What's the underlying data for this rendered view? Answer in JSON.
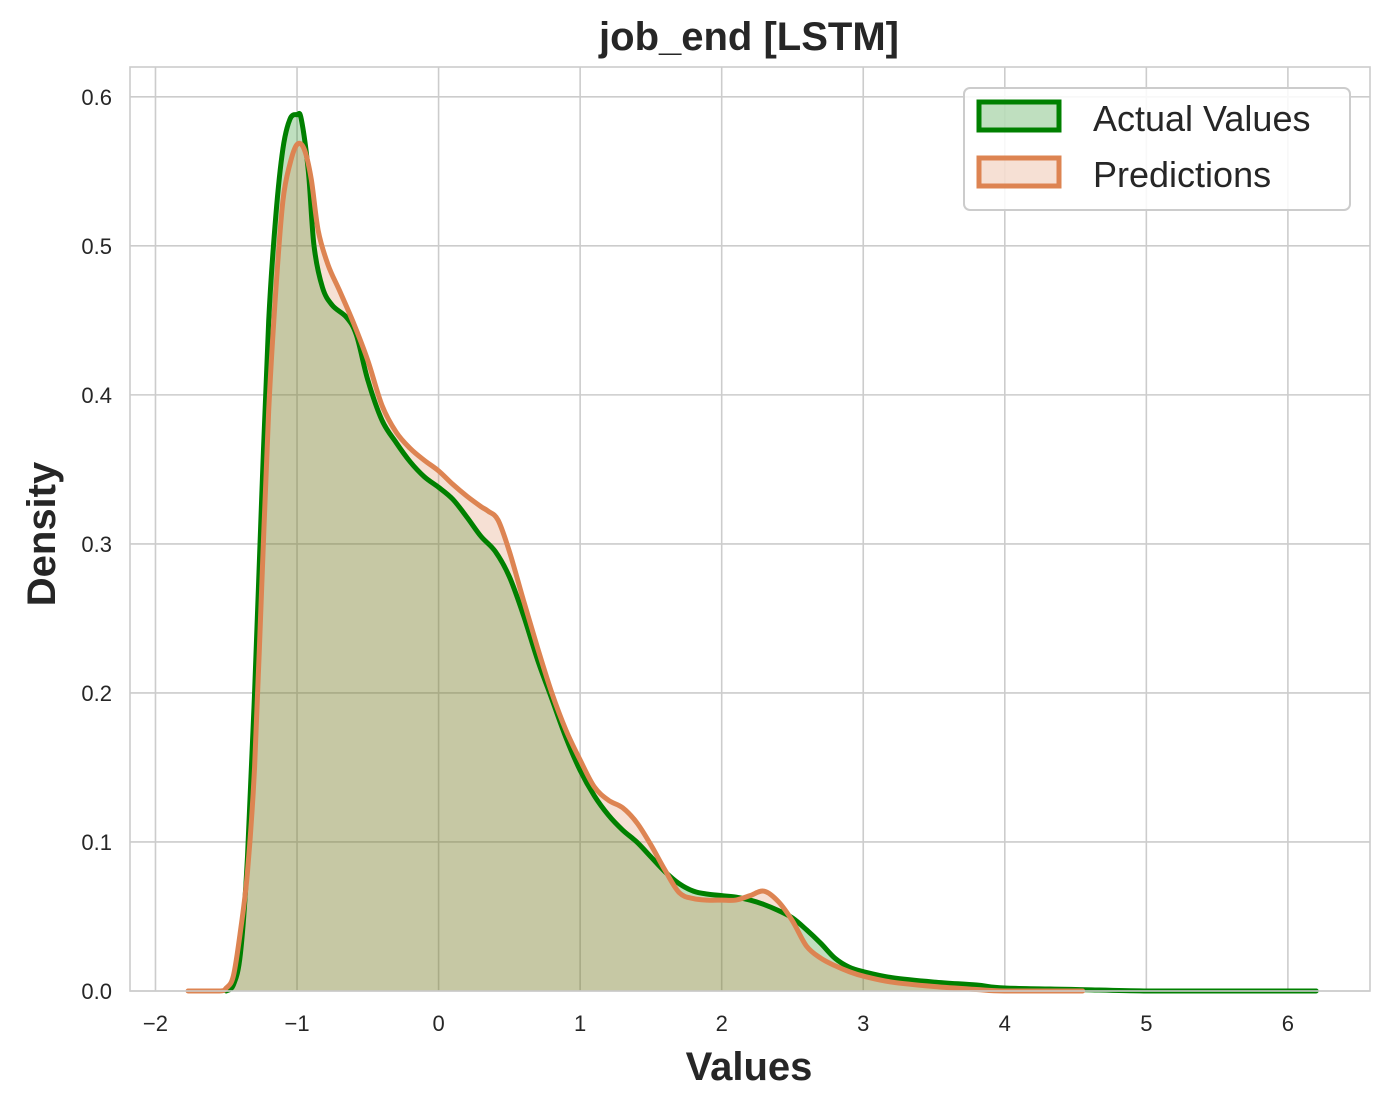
{
  "chart_data": {
    "type": "area",
    "title": "job_end [LSTM]",
    "xlabel": "Values",
    "ylabel": "Density",
    "xlim": [
      -2.18,
      6.58
    ],
    "ylim": [
      0.0,
      0.62
    ],
    "x_ticks": [
      -2,
      -1,
      0,
      1,
      2,
      3,
      4,
      5,
      6
    ],
    "x_tick_labels": [
      "−2",
      "−1",
      "0",
      "1",
      "2",
      "3",
      "4",
      "5",
      "6"
    ],
    "y_ticks": [
      0.0,
      0.1,
      0.2,
      0.3,
      0.4,
      0.5,
      0.6
    ],
    "y_tick_labels": [
      "0.0",
      "0.1",
      "0.2",
      "0.3",
      "0.4",
      "0.5",
      "0.6"
    ],
    "grid": true,
    "legend_position": "top-right",
    "series": [
      {
        "name": "Actual Values",
        "color": "#008000",
        "fill_color": "#008000",
        "fill_opacity": 0.25,
        "points": [
          [
            -1.5,
            0.0
          ],
          [
            -1.45,
            0.004
          ],
          [
            -1.4,
            0.025
          ],
          [
            -1.35,
            0.09
          ],
          [
            -1.3,
            0.2
          ],
          [
            -1.25,
            0.33
          ],
          [
            -1.2,
            0.45
          ],
          [
            -1.15,
            0.52
          ],
          [
            -1.1,
            0.565
          ],
          [
            -1.05,
            0.585
          ],
          [
            -1.0,
            0.588
          ],
          [
            -0.97,
            0.585
          ],
          [
            -0.92,
            0.55
          ],
          [
            -0.88,
            0.5
          ],
          [
            -0.82,
            0.472
          ],
          [
            -0.75,
            0.46
          ],
          [
            -0.65,
            0.452
          ],
          [
            -0.58,
            0.44
          ],
          [
            -0.5,
            0.41
          ],
          [
            -0.4,
            0.383
          ],
          [
            -0.3,
            0.368
          ],
          [
            -0.2,
            0.355
          ],
          [
            -0.1,
            0.345
          ],
          [
            0.0,
            0.338
          ],
          [
            0.1,
            0.33
          ],
          [
            0.2,
            0.318
          ],
          [
            0.3,
            0.305
          ],
          [
            0.4,
            0.295
          ],
          [
            0.5,
            0.278
          ],
          [
            0.6,
            0.252
          ],
          [
            0.7,
            0.222
          ],
          [
            0.8,
            0.196
          ],
          [
            0.9,
            0.17
          ],
          [
            1.0,
            0.148
          ],
          [
            1.1,
            0.131
          ],
          [
            1.2,
            0.118
          ],
          [
            1.3,
            0.108
          ],
          [
            1.4,
            0.1
          ],
          [
            1.5,
            0.09
          ],
          [
            1.6,
            0.08
          ],
          [
            1.7,
            0.072
          ],
          [
            1.8,
            0.067
          ],
          [
            1.9,
            0.065
          ],
          [
            2.0,
            0.064
          ],
          [
            2.1,
            0.063
          ],
          [
            2.2,
            0.061
          ],
          [
            2.3,
            0.058
          ],
          [
            2.4,
            0.054
          ],
          [
            2.5,
            0.049
          ],
          [
            2.6,
            0.041
          ],
          [
            2.7,
            0.032
          ],
          [
            2.8,
            0.022
          ],
          [
            2.9,
            0.016
          ],
          [
            3.0,
            0.013
          ],
          [
            3.2,
            0.009
          ],
          [
            3.5,
            0.006
          ],
          [
            3.8,
            0.004
          ],
          [
            4.0,
            0.002
          ],
          [
            4.5,
            0.001
          ],
          [
            5.0,
            0.0
          ],
          [
            5.5,
            0.0
          ],
          [
            6.2,
            0.0
          ]
        ]
      },
      {
        "name": "Predictions",
        "color": "#dd8452",
        "fill_color": "#dd8452",
        "fill_opacity": 0.25,
        "points": [
          [
            -1.77,
            0.0
          ],
          [
            -1.55,
            0.0
          ],
          [
            -1.5,
            0.002
          ],
          [
            -1.45,
            0.01
          ],
          [
            -1.4,
            0.04
          ],
          [
            -1.35,
            0.08
          ],
          [
            -1.3,
            0.15
          ],
          [
            -1.25,
            0.27
          ],
          [
            -1.2,
            0.39
          ],
          [
            -1.15,
            0.47
          ],
          [
            -1.1,
            0.53
          ],
          [
            -1.05,
            0.555
          ],
          [
            -1.0,
            0.568
          ],
          [
            -0.95,
            0.565
          ],
          [
            -0.9,
            0.545
          ],
          [
            -0.85,
            0.51
          ],
          [
            -0.78,
            0.487
          ],
          [
            -0.7,
            0.47
          ],
          [
            -0.6,
            0.448
          ],
          [
            -0.5,
            0.423
          ],
          [
            -0.4,
            0.393
          ],
          [
            -0.3,
            0.375
          ],
          [
            -0.2,
            0.364
          ],
          [
            -0.1,
            0.356
          ],
          [
            0.0,
            0.349
          ],
          [
            0.1,
            0.34
          ],
          [
            0.2,
            0.332
          ],
          [
            0.3,
            0.325
          ],
          [
            0.35,
            0.322
          ],
          [
            0.42,
            0.316
          ],
          [
            0.5,
            0.295
          ],
          [
            0.6,
            0.262
          ],
          [
            0.7,
            0.23
          ],
          [
            0.8,
            0.2
          ],
          [
            0.9,
            0.175
          ],
          [
            1.0,
            0.155
          ],
          [
            1.1,
            0.137
          ],
          [
            1.2,
            0.128
          ],
          [
            1.3,
            0.123
          ],
          [
            1.4,
            0.113
          ],
          [
            1.5,
            0.098
          ],
          [
            1.6,
            0.081
          ],
          [
            1.7,
            0.066
          ],
          [
            1.8,
            0.062
          ],
          [
            1.9,
            0.061
          ],
          [
            2.0,
            0.061
          ],
          [
            2.1,
            0.061
          ],
          [
            2.2,
            0.064
          ],
          [
            2.3,
            0.067
          ],
          [
            2.4,
            0.06
          ],
          [
            2.5,
            0.047
          ],
          [
            2.6,
            0.03
          ],
          [
            2.7,
            0.022
          ],
          [
            2.8,
            0.017
          ],
          [
            2.9,
            0.013
          ],
          [
            3.0,
            0.01
          ],
          [
            3.2,
            0.006
          ],
          [
            3.5,
            0.003
          ],
          [
            3.8,
            0.001
          ],
          [
            4.0,
            0.0
          ],
          [
            4.55,
            0.0
          ]
        ]
      }
    ]
  }
}
